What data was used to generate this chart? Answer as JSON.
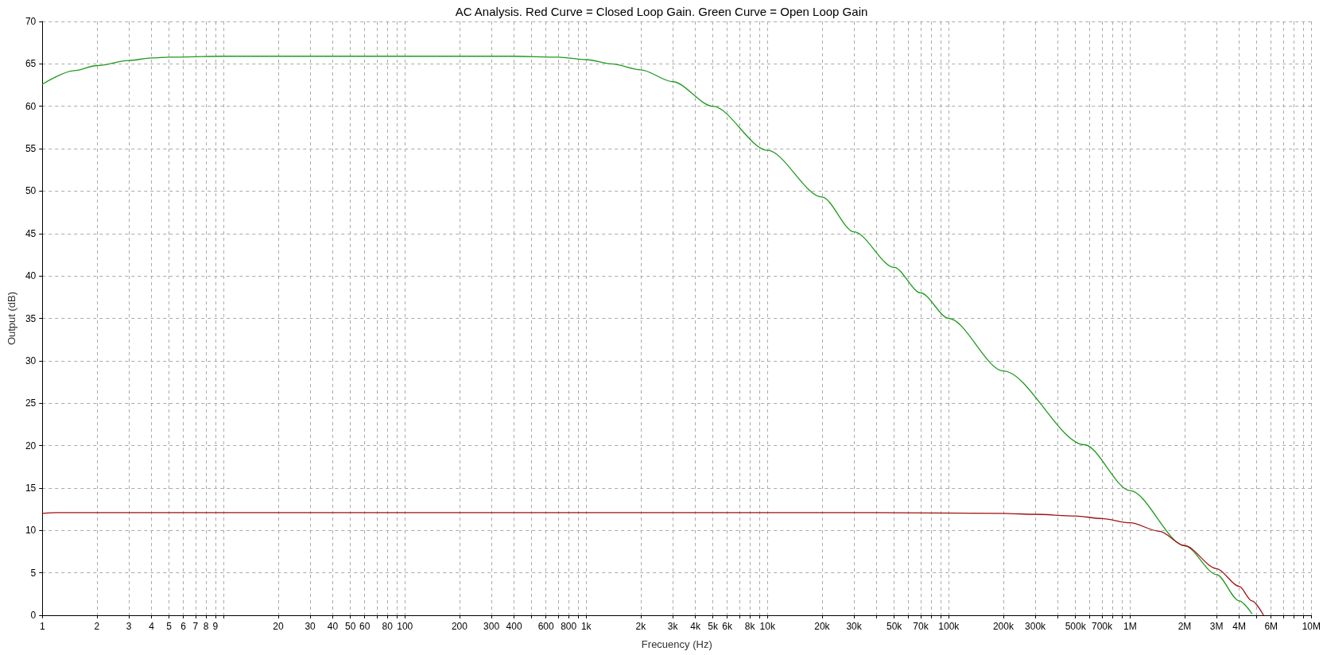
{
  "chart_data": {
    "type": "line",
    "title": "AC Analysis. Red Curve = Closed Loop Gain. Green Curve = Open Loop Gain",
    "xlabel": "Frecuency (Hz)",
    "ylabel": "Output (dB)",
    "log": "x",
    "grid": true,
    "marker": "none",
    "line_style": "solid",
    "xlim": [
      1,
      10000000
    ],
    "ylim": [
      0,
      70
    ],
    "xticks": [
      1,
      2,
      3,
      4,
      5,
      6,
      7,
      8,
      9,
      {
        "value": 10,
        "label": null
      },
      20,
      30,
      40,
      50,
      60,
      {
        "value": 70,
        "label": null
      },
      80,
      {
        "value": 90,
        "label": null
      },
      100,
      200,
      300,
      400,
      {
        "value": 500,
        "label": null
      },
      600,
      {
        "value": 700,
        "label": null
      },
      800,
      {
        "value": 900,
        "label": null
      },
      {
        "value": 1000,
        "label": "1k"
      },
      {
        "value": 2000,
        "label": "2k"
      },
      {
        "value": 3000,
        "label": "3k"
      },
      {
        "value": 4000,
        "label": "4k"
      },
      {
        "value": 5000,
        "label": "5k"
      },
      {
        "value": 6000,
        "label": "6k"
      },
      {
        "value": 7000,
        "label": null
      },
      {
        "value": 8000,
        "label": "8k"
      },
      {
        "value": 9000,
        "label": null
      },
      {
        "value": 10000,
        "label": "10k"
      },
      {
        "value": 20000,
        "label": "20k"
      },
      {
        "value": 30000,
        "label": "30k"
      },
      {
        "value": 40000,
        "label": null
      },
      {
        "value": 50000,
        "label": "50k"
      },
      {
        "value": 60000,
        "label": null
      },
      {
        "value": 70000,
        "label": "70k"
      },
      {
        "value": 80000,
        "label": null
      },
      {
        "value": 90000,
        "label": null
      },
      {
        "value": 100000,
        "label": "100k"
      },
      {
        "value": 200000,
        "label": "200k"
      },
      {
        "value": 300000,
        "label": "300k"
      },
      {
        "value": 400000,
        "label": null
      },
      {
        "value": 500000,
        "label": "500k"
      },
      {
        "value": 600000,
        "label": null
      },
      {
        "value": 700000,
        "label": "700k"
      },
      {
        "value": 800000,
        "label": null
      },
      {
        "value": 900000,
        "label": null
      },
      {
        "value": 1000000,
        "label": "1M"
      },
      {
        "value": 2000000,
        "label": "2M"
      },
      {
        "value": 3000000,
        "label": "3M"
      },
      {
        "value": 4000000,
        "label": "4M"
      },
      {
        "value": 5000000,
        "label": null
      },
      {
        "value": 6000000,
        "label": "6M"
      },
      {
        "value": 7000000,
        "label": null
      },
      {
        "value": 8000000,
        "label": null
      },
      {
        "value": 9000000,
        "label": null
      },
      {
        "value": 10000000,
        "label": "10M"
      }
    ],
    "yticks": [
      0,
      5,
      10,
      15,
      20,
      25,
      30,
      35,
      40,
      45,
      50,
      55,
      60,
      65,
      70
    ],
    "series": [
      {
        "color": "#1e9a1e",
        "x": [
          1,
          1.5,
          2,
          3,
          4,
          5,
          10,
          100,
          400,
          700,
          1000,
          1380,
          2000,
          3000,
          5000,
          10000,
          20000,
          30000,
          50000,
          70000,
          100000,
          200000,
          560000,
          1000000,
          2000000,
          3000000,
          4000000,
          4700000
        ],
        "values": [
          62.6,
          64.2,
          64.8,
          65.4,
          65.7,
          65.8,
          65.9,
          65.9,
          65.9,
          65.8,
          65.5,
          65.0,
          64.3,
          62.9,
          60.0,
          54.8,
          49.3,
          45.2,
          41.0,
          38.0,
          35.0,
          28.8,
          20.1,
          14.7,
          8.2,
          4.8,
          1.7,
          0.2
        ]
      },
      {
        "color": "#a01010",
        "x": [
          1,
          1.2,
          10,
          1000,
          40000,
          200000,
          300000,
          500000,
          700000,
          1000000,
          1450000,
          2000000,
          3000000,
          4000000,
          4700000,
          5450000
        ],
        "values": [
          12.0,
          12.1,
          12.1,
          12.1,
          12.1,
          12.0,
          11.9,
          11.7,
          11.4,
          10.9,
          9.9,
          8.2,
          5.5,
          3.4,
          1.7,
          0
        ]
      }
    ]
  }
}
